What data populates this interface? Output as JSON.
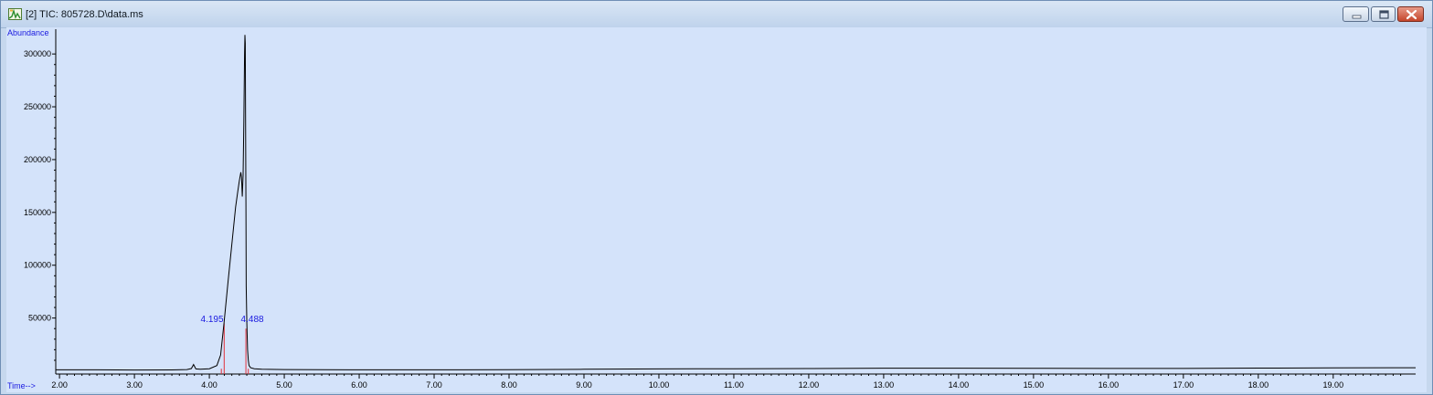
{
  "window": {
    "title": "[2] TIC: 805728.D\\data.ms",
    "app_icon": "chromatogram-app-icon",
    "controls": [
      "minimize-icon",
      "maximize-icon",
      "close-icon"
    ]
  },
  "colors": {
    "plot_background": "#d4e3fa",
    "trace": "#000000",
    "label_text": "#1a1ae0",
    "integration_marker": "#e0303a"
  },
  "chart_data": {
    "type": "line",
    "ylabel": "Abundance",
    "xlabel": "Time-->",
    "xlim": [
      1.95,
      20.1
    ],
    "ylim": [
      -3000,
      320000
    ],
    "x_ticks": [
      "2.00",
      "3.00",
      "4.00",
      "5.00",
      "6.00",
      "7.00",
      "8.00",
      "9.00",
      "10.00",
      "11.00",
      "12.00",
      "13.00",
      "14.00",
      "15.00",
      "16.00",
      "17.00",
      "18.00",
      "19.00"
    ],
    "y_ticks": [
      "50000",
      "100000",
      "150000",
      "200000",
      "250000",
      "300000"
    ],
    "series": [
      {
        "x": [
          1.95,
          2.5,
          3.0,
          3.5,
          3.7,
          3.76,
          3.79,
          3.82,
          3.88,
          4.0,
          4.1,
          4.15,
          4.195,
          4.25,
          4.3,
          4.35,
          4.38,
          4.4,
          4.42,
          4.43,
          4.44,
          4.45,
          4.46,
          4.47,
          4.475,
          4.48,
          4.485,
          4.488,
          4.492,
          4.5,
          4.51,
          4.52,
          4.53,
          4.55,
          4.6,
          4.7,
          5.0,
          6.0,
          7.0,
          8.0,
          9.0,
          10.0,
          11.0,
          12.0,
          13.0,
          14.0,
          15.0,
          16.0,
          17.0,
          18.0,
          19.0,
          20.1
        ],
        "y": [
          1000,
          1000,
          800,
          900,
          1200,
          2200,
          6000,
          1800,
          1500,
          2000,
          5000,
          15000,
          45000,
          85000,
          120000,
          155000,
          170000,
          180000,
          188000,
          183000,
          165000,
          185000,
          235000,
          300000,
          318000,
          310000,
          220000,
          160000,
          80000,
          45000,
          20000,
          10000,
          5000,
          3000,
          2000,
          1500,
          1200,
          1000,
          1000,
          1100,
          1500,
          1800,
          2000,
          2200,
          2500,
          2500,
          2400,
          2300,
          2300,
          2600,
          2800,
          3000
        ]
      }
    ],
    "annotations": [
      {
        "text": "4.195",
        "x": 4.195
      },
      {
        "text": "4.488",
        "x": 4.488
      }
    ],
    "integration_markers": [
      {
        "x": 4.16,
        "y_top": 2000
      },
      {
        "x": 4.198,
        "y_top": 45000
      },
      {
        "x": 4.488,
        "y_top": 40000
      },
      {
        "x": 4.52,
        "y_top": 2000
      }
    ],
    "grid": false
  }
}
